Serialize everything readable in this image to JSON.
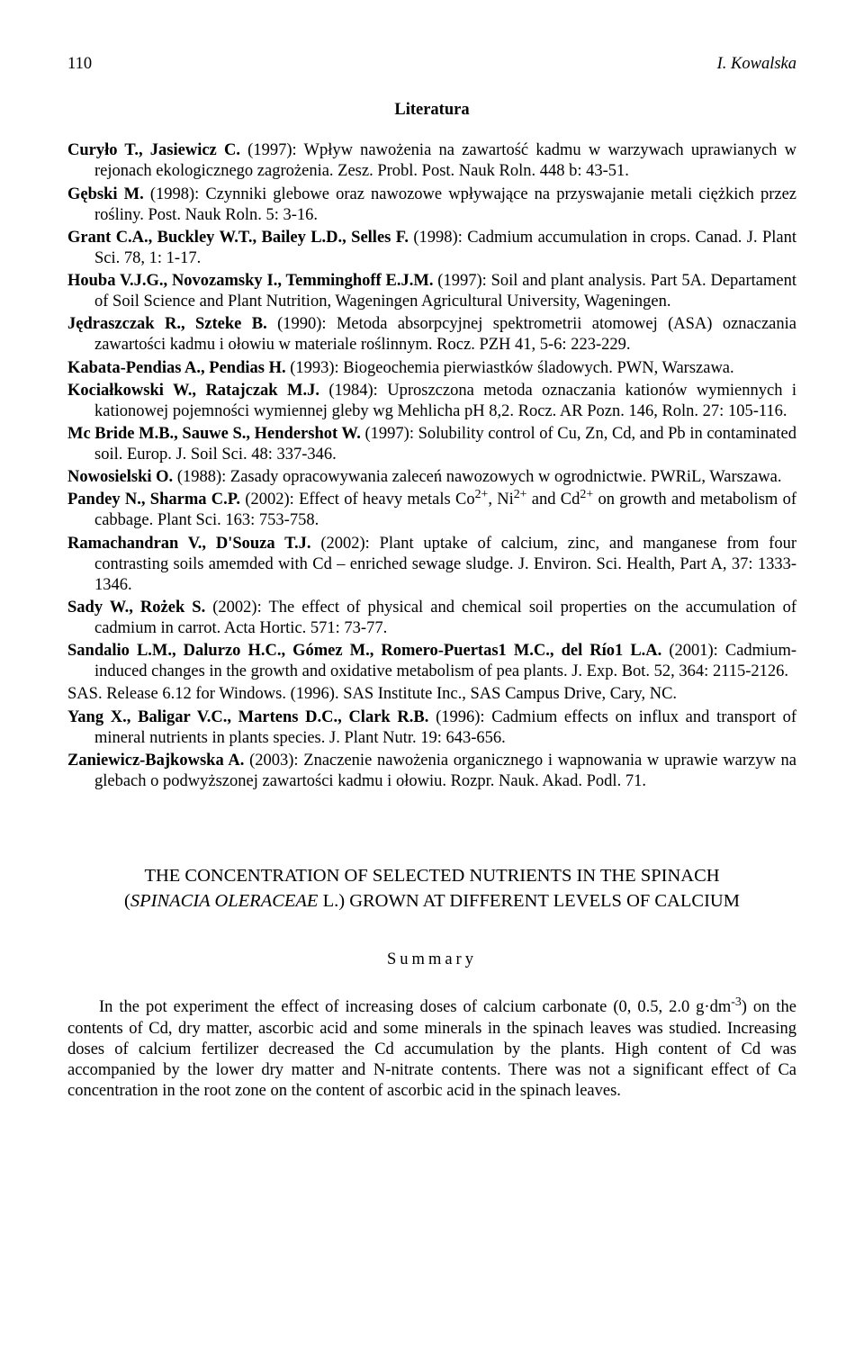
{
  "header": {
    "page_number": "110",
    "running_head": "I. Kowalska"
  },
  "section_title": "Literatura",
  "references": [
    "<b>Curyło T., Jasiewicz C.</b> (1997): Wpływ nawożenia na zawartość kadmu w warzywach uprawianych w rejonach ekologicznego zagrożenia. Zesz. Probl. Post. Nauk Roln. 448 b: 43-51.",
    "<b>Gębski M.</b> (1998): Czynniki glebowe oraz nawozowe wpływające na przyswajanie metali ciężkich przez rośliny. Post. Nauk Roln. 5: 3-16.",
    "<b>Grant C.A., Buckley W.T., Bailey L.D., Selles F.</b> (1998): Cadmium accumulation in crops. Canad. J. Plant Sci. 78, 1: 1-17.",
    "<b>Houba V.J.G., Novozamsky I., Temminghoff E.J.M.</b> (1997): Soil and plant analysis. Part 5A. Departament of Soil Science and Plant Nutrition, Wageningen Agricultural University, Wageningen.",
    "<b>Jędraszczak R., Szteke B.</b> (1990): Metoda absorpcyjnej spektrometrii atomowej (ASA) oznaczania zawartości kadmu i ołowiu w materiale roślinnym. Rocz. PZH 41, 5-6: 223-229.",
    "<b>Kabata-Pendias A., Pendias H.</b> (1993): Biogeochemia pierwiastków śladowych. PWN, Warszawa.",
    "<b>Kociałkowski W., Ratajczak M.J.</b> (1984): Uproszczona metoda oznaczania kationów wymiennych i kationowej pojemności wymiennej gleby wg Mehlicha pH 8,2. Rocz. AR Pozn. 146, Roln. 27: 105-116.",
    "<b>Mc Bride M.B., Sauwe S., Hendershot W.</b> (1997): Solubility control of Cu, Zn, Cd, and Pb in contaminated soil. Europ. J. Soil Sci. 48: 337-346.",
    "<b>Nowosielski O.</b> (1988): Zasady opracowywania zaleceń nawozowych w ogrodnictwie. PWRiL, Warszawa.",
    "<b>Pandey N., Sharma C.P.</b> (2002): Effect of heavy metals Co<sup>2+</sup>, Ni<sup>2+</sup> and Cd<sup>2+</sup> on growth and metabolism of cabbage. Plant Sci. 163: 753-758.",
    "<b>Ramachandran V., D'Souza T.J.</b> (2002): Plant uptake of calcium, zinc, and manganese from four contrasting soils amemded with Cd – enriched sewage sludge. J. Environ. Sci. Health, Part A, 37: 1333-1346.",
    "<b>Sady W., Rożek S.</b> (2002): The effect of physical and chemical soil properties on the accumulation of cadmium in carrot. Acta Hortic. 571: 73-77.",
    "<b>Sandalio L.M., Dalurzo H.C., Gómez M., Romero-Puertas1 M.C., del Río1 L.A.</b> (2001): Cadmium-induced changes in the growth and oxidative metabolism of pea plants. J. Exp. Bot. 52, 364: 2115-2126.",
    "SAS. Release 6.12 for Windows. (1996). SAS Institute Inc., SAS Campus Drive, Cary, NC.",
    "<b>Yang X., Baligar V.C., Martens D.C., Clark R.B.</b> (1996): Cadmium effects on influx and transport of mineral nutrients in plants species. J. Plant Nutr. 19: 643-656.",
    "<b>Zaniewicz-Bajkowska A.</b> (2003): Znaczenie nawożenia organicznego i wapnowania w uprawie warzyw na glebach o podwyższonej zawartości kadmu i ołowiu. Rozpr. Nauk. Akad. Podl. 71."
  ],
  "article_title_line1": "THE CONCENTRATION OF SELECTED NUTRIENTS IN THE SPINACH",
  "article_title_line2a": "(",
  "article_title_line2_italic": "SPINACIA OLERACEAE",
  "article_title_line2b": " L.) GROWN AT DIFFERENT LEVELS OF CALCIUM",
  "summary_heading": "Summary",
  "summary_text": "In the pot experiment the effect of increasing doses of calcium carbonate (0, 0.5, 2.0 g·dm<sup>-3</sup>) on the contents of Cd, dry matter, ascorbic acid and some minerals in the spinach leaves was studied. Increasing doses of calcium fertilizer decreased the Cd accumulation by the plants. High content of Cd was accompanied by the lower dry matter and N-nitrate contents. There was not a significant effect of Ca concentration in the root zone on the content of ascorbic acid in the spinach leaves."
}
